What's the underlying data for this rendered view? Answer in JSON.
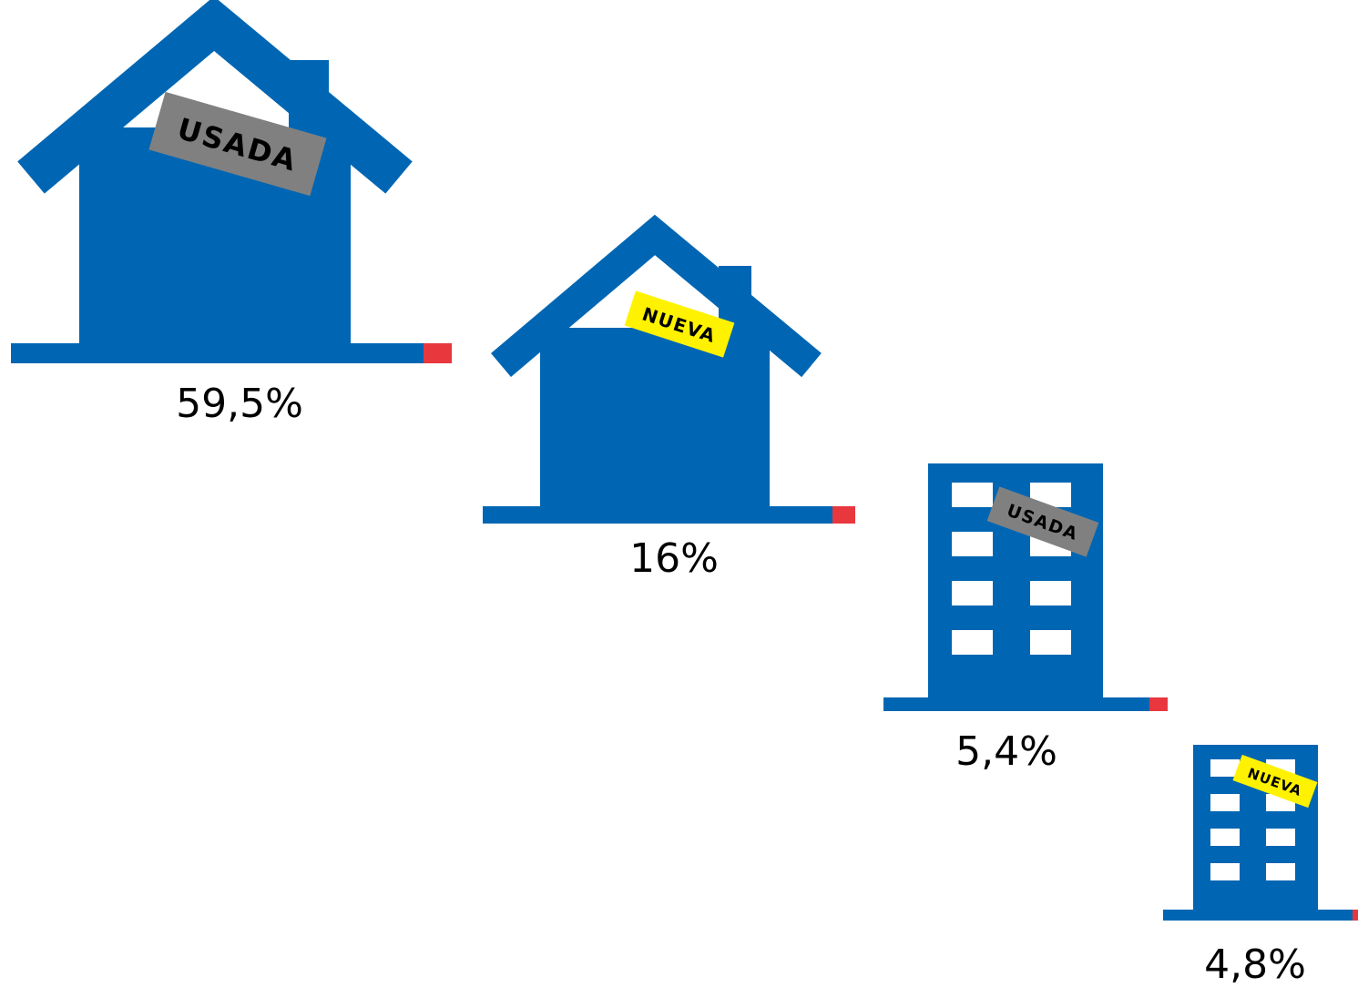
{
  "chart_data": {
    "type": "pictograph",
    "title": "",
    "xlabel": "",
    "ylabel": "",
    "categories": [
      {
        "tag": "USADA",
        "icon": "house-icon"
      },
      {
        "tag": "NUEVA",
        "icon": "house-icon"
      },
      {
        "tag": "USADA",
        "icon": "apartment-building-icon"
      },
      {
        "tag": "NUEVA",
        "icon": "apartment-building-icon"
      }
    ],
    "values": [
      59.5,
      16,
      5.4,
      4.8
    ],
    "value_labels": [
      "59,5%",
      "16%",
      "5,4%",
      "4,8%"
    ],
    "tag_colors": {
      "USADA": "#808080",
      "NUEVA": "#FFF200"
    },
    "colors": {
      "icon": "#0066B3",
      "ground_accent": "#E8383D"
    }
  }
}
